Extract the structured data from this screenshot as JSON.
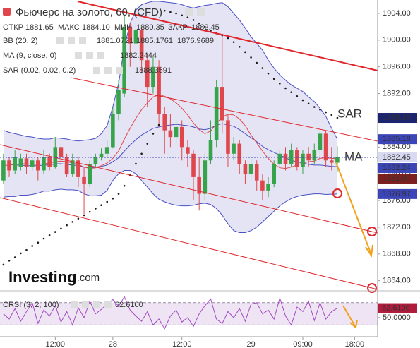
{
  "chart_data": [
    {
      "type": "candlestick",
      "title": "Фьючерс на золото, 60, (CFD)",
      "ohlc_legend": [
        {
          "name": "ОТКР",
          "value": 1881.65
        },
        {
          "name": "МАКС",
          "value": {
            "value": 1884.1,
            "label": "1884.10"
          }
        },
        {
          "name": "МИН",
          "value": 1880.35
        },
        {
          "name": "ЗАКР",
          "value": 1882.45
        }
      ],
      "indicators": [
        {
          "name": "BB (20, 2)",
          "values": [
            1881.0721,
            1885.1761,
            1876.9689
          ],
          "colors": [
            "#d32f2f",
            "#2b2fa8",
            "#2b2fa8"
          ]
        },
        {
          "name": "MA (9, close, 0)",
          "values": [
            1882.2444
          ],
          "colors": [
            "#2b2fa8"
          ]
        },
        {
          "name": "SAR (0.02, 0.02, 0.2)",
          "values": [
            1888.3591
          ],
          "colors": [
            "#2b2fa8"
          ]
        }
      ],
      "annotations": [
        "SAR",
        "MA"
      ],
      "watermark": [
        "Investing",
        ".com"
      ],
      "up_color": "#37a34a",
      "down_color": "#e0474c",
      "open": [
        1879,
        1882,
        1880.5,
        1881,
        1882.3,
        1881,
        1882,
        1880.5,
        1882.5,
        1881,
        1884,
        1882.5,
        1880,
        1882,
        1879.5,
        1878.5,
        1881.5,
        1882.5,
        1883,
        1884,
        1889,
        1892,
        1902,
        1899.5,
        1901.5,
        1897,
        1893,
        1896,
        1889,
        1886.5,
        1885.5,
        1887,
        1884,
        1883,
        1879.5,
        1877,
        1882,
        1885,
        1893,
        1888,
        1883,
        1884.5,
        1881.5,
        1880,
        1881.5,
        1879,
        1877.5,
        1878.5,
        1881.5,
        1883,
        1881.5,
        1883.5,
        1881,
        1883,
        1882,
        1883.5,
        1886,
        1882,
        1881.65
      ],
      "high": [
        1883,
        1882.5,
        1883.5,
        1883,
        1883,
        1882.5,
        1882.5,
        1883.5,
        1883,
        1885.5,
        1884.5,
        1883,
        1883,
        1882.5,
        1881,
        1882,
        1883,
        1883.8,
        1885,
        1890,
        1894,
        1903.8,
        1902.5,
        1902.5,
        1902,
        1898,
        1897.5,
        1897,
        1890,
        1889,
        1888,
        1888,
        1885,
        1883.5,
        1882.5,
        1883,
        1888,
        1894,
        1901,
        1889,
        1885.5,
        1885,
        1882,
        1882.5,
        1882,
        1880,
        1879.5,
        1882,
        1883.5,
        1884,
        1884.5,
        1884,
        1883.5,
        1884,
        1884.5,
        1886.5,
        1886.5,
        1884,
        1884.1
      ],
      "low": [
        1878.5,
        1879.5,
        1880,
        1880.5,
        1880,
        1880.5,
        1879,
        1880,
        1880.5,
        1880.8,
        1881,
        1879.5,
        1879.5,
        1878,
        1874,
        1878,
        1881,
        1882,
        1882.5,
        1883.8,
        1888,
        1891.5,
        1896,
        1898.5,
        1895,
        1890,
        1892,
        1887,
        1883,
        1884,
        1884.5,
        1882,
        1881,
        1876,
        1874.5,
        1876,
        1881.5,
        1884,
        1886,
        1881,
        1882,
        1880,
        1878.5,
        1879,
        1877.5,
        1876,
        1876.5,
        1878,
        1881,
        1880.5,
        1881,
        1880.5,
        1880,
        1881,
        1881.5,
        1882,
        1881,
        1880.5,
        1880.35
      ],
      "close": [
        1882,
        1880.5,
        1882.5,
        1882.3,
        1881,
        1882,
        1880.5,
        1882.5,
        1881,
        1884,
        1882.5,
        1880,
        1882,
        1879.5,
        1878.5,
        1881.5,
        1882.5,
        1883,
        1884,
        1889,
        1892.5,
        1902,
        1899.5,
        1901.5,
        1897,
        1893,
        1896,
        1889,
        1886.5,
        1885.5,
        1887,
        1884,
        1883,
        1879.5,
        1877,
        1882,
        1885,
        1893,
        1888,
        1883,
        1884.5,
        1881.5,
        1880,
        1881.5,
        1879,
        1877.5,
        1878.5,
        1881.5,
        1883,
        1881.5,
        1883.5,
        1881,
        1883,
        1882,
        1883.5,
        1886,
        1882,
        1881.65,
        1882.45
      ],
      "bb": {
        "color": "#4a4fc4",
        "fill": "#e4e4f4",
        "upper": [
          1886.5,
          1886.2,
          1886,
          1885.8,
          1885.6,
          1885.5,
          1885.3,
          1885.2,
          1885.2,
          1885.4,
          1885.3,
          1885.2,
          1885,
          1884.9,
          1885,
          1885.1,
          1885.3,
          1886,
          1887.2,
          1890,
          1893.5,
          1899,
          1902.5,
          1904.5,
          1905.3,
          1905.6,
          1905.8,
          1905.8,
          1905.7,
          1905.6,
          1905.5,
          1905.3,
          1905,
          1904.8,
          1905,
          1905.2,
          1905.3,
          1905.5,
          1905.6,
          1905,
          1904,
          1903,
          1901.8,
          1900.5,
          1899.5,
          1898.5,
          1897,
          1895.8,
          1894.8,
          1894,
          1893.3,
          1892.8,
          1892.3,
          1891.5,
          1890.8,
          1889.8,
          1888.6,
          1886.8,
          1885.18
        ],
        "middle": [
          1881.5,
          1881.4,
          1881.3,
          1881.3,
          1881.2,
          1881.2,
          1881.2,
          1881.3,
          1881.3,
          1881.5,
          1881.5,
          1881.4,
          1881.3,
          1881.2,
          1881,
          1880.9,
          1881,
          1881.1,
          1881.3,
          1881.8,
          1882.4,
          1883.4,
          1884.3,
          1885.1,
          1885.8,
          1886.3,
          1886.8,
          1887,
          1887.2,
          1887.3,
          1887.4,
          1887.3,
          1887.2,
          1887,
          1886.7,
          1886.6,
          1886.8,
          1887.3,
          1887.5,
          1887.3,
          1887.1,
          1886.6,
          1886,
          1885.4,
          1884.8,
          1884.1,
          1883.6,
          1883.2,
          1882.8,
          1882.4,
          1882,
          1881.8,
          1881.6,
          1881.4,
          1881.3,
          1881.3,
          1881.2,
          1881.1,
          1881.07
        ],
        "lower": [
          1876.5,
          1876.6,
          1876.6,
          1876.8,
          1876.8,
          1876.9,
          1877.1,
          1877.4,
          1877.4,
          1877.6,
          1877.7,
          1877.6,
          1877.6,
          1877.5,
          1877,
          1876.7,
          1876.7,
          1876.8,
          1877.5,
          1879,
          1880,
          1880.5,
          1880.5,
          1880,
          1879,
          1878,
          1877,
          1876.2,
          1875.8,
          1875.5,
          1875.3,
          1875.2,
          1875.2,
          1875.3,
          1875.5,
          1875.6,
          1875.4,
          1874.8,
          1873.8,
          1872.5,
          1871.5,
          1871.2,
          1871.2,
          1871.5,
          1872,
          1872.8,
          1873.6,
          1874.4,
          1875.2,
          1875.8,
          1876.3,
          1876.6,
          1876.8,
          1876.9,
          1877,
          1877,
          1876.9,
          1876.95,
          1876.97
        ]
      },
      "ma": {
        "color": "#e0474c",
        "values": [
          1881.2,
          1881.3,
          1881.4,
          1881.5,
          1881.5,
          1881.4,
          1881.4,
          1881.5,
          1881.6,
          1881.8,
          1881.9,
          1881.8,
          1881.6,
          1881.4,
          1881,
          1880.8,
          1880.9,
          1881.2,
          1881.6,
          1882.3,
          1883.4,
          1885.2,
          1886.8,
          1888.3,
          1889.6,
          1890.6,
          1891.5,
          1891.8,
          1891.6,
          1891.2,
          1890.6,
          1889.8,
          1888.8,
          1887.6,
          1886.6,
          1886,
          1886.4,
          1887.5,
          1888.5,
          1888.9,
          1888.8,
          1888.2,
          1887.2,
          1885.8,
          1884.6,
          1883.4,
          1882.3,
          1881.4,
          1880.9,
          1880.8,
          1881,
          1881.3,
          1881.6,
          1881.8,
          1881.9,
          1882.3,
          1882.4,
          1882.3,
          1882.24
        ]
      },
      "sar": {
        "color": "#1b1b1b",
        "values": [
          1866.4,
          1867,
          1867.5,
          1868.1,
          1868.6,
          1869.2,
          1869.7,
          1870.3,
          1870.8,
          1871.3,
          1871.8,
          1872.3,
          1872.8,
          1873.3,
          1873.8,
          1874.3,
          1874.8,
          1875.3,
          1875.8,
          1876.3,
          1877,
          1878.2,
          1879.8,
          1881.5,
          1883,
          1884.5,
          1886,
          1887.3,
          1904.4,
          1904.2,
          1904,
          1903.7,
          1903.4,
          1903,
          1902.5,
          1902,
          1901.4,
          1901,
          1900.7,
          1900.3,
          1899.7,
          1899,
          1898.2,
          1897.4,
          1896.6,
          1895.8,
          1895,
          1894.2,
          1893.5,
          1892.8,
          1892.2,
          1891.6,
          1891,
          1890.5,
          1890,
          1889.6,
          1889.2,
          1888.8,
          1888.36
        ]
      },
      "price_labels": [
        {
          "value": 1888.36,
          "color": "#1c2470",
          "text_color": "#ffffff"
        },
        {
          "value": 1885.18,
          "color": "#3c45b8",
          "text_color": "#ffffff"
        },
        {
          "value": 1882.45,
          "color": "#d7daf1",
          "text_color": "#1c2470"
        },
        {
          "value": 1882.24,
          "color": "#3c45b8",
          "text_color": "#ffffff"
        },
        {
          "value": 1881.07,
          "color": "#7d1f1f",
          "text_color": "#ffffff"
        },
        {
          "value": 1876.97,
          "color": "#3c45b8",
          "text_color": "#ffffff"
        }
      ],
      "xlim": [
        -0.6,
        65
      ],
      "xticks": [
        {
          "value": 9,
          "label": "12:00"
        },
        {
          "value": 19,
          "label": "28"
        },
        {
          "value": 31,
          "label": "12:00"
        },
        {
          "value": 43,
          "label": "29"
        },
        {
          "value": 52,
          "label": "09:00"
        },
        {
          "value": 61,
          "label": "18:00"
        }
      ],
      "ylim": [
        1862.7,
        1906
      ],
      "yticks": [
        {
          "value": 1864,
          "label": "1864.00"
        },
        {
          "value": 1868,
          "label": "1868.00"
        },
        {
          "value": 1872,
          "label": "1872.00"
        },
        {
          "value": 1876,
          "label": "1876.00"
        },
        {
          "value": 1880,
          "label": "1880.00"
        },
        {
          "value": 1884,
          "label": "1884.00"
        },
        {
          "value": 1888,
          "label": "1888.00"
        },
        {
          "value": 1892,
          "label": "1892.00"
        },
        {
          "value": 1896,
          "label": "1896.00"
        },
        {
          "value": 1900,
          "label": "1900.00"
        },
        {
          "value": 1904,
          "label": "1904.00"
        }
      ]
    },
    {
      "type": "line",
      "title": "CRSI (3, 2, 100)",
      "value": {
        "value": 62.61,
        "label": "62.6100"
      },
      "color": "#a24bc0",
      "value_box_color": "#b11c3c",
      "levels": [
        70,
        40
      ],
      "level_fill": "#eee4f3",
      "xlim": [
        -0.6,
        65
      ],
      "ylim": [
        29,
        84
      ],
      "yticks": [
        {
          "value": 50,
          "label": "50.0000"
        }
      ],
      "values": [
        55,
        48,
        62,
        45,
        58,
        70,
        42,
        60,
        52,
        66,
        44,
        58,
        40,
        63,
        50,
        72,
        55,
        61,
        68,
        74,
        65,
        78,
        60,
        52,
        45,
        58,
        40,
        48,
        35,
        52,
        60,
        44,
        50,
        38,
        55,
        66,
        75,
        48,
        42,
        58,
        50,
        62,
        45,
        68,
        70,
        55,
        60,
        48,
        76,
        52,
        40,
        64,
        58,
        72,
        46,
        70,
        48,
        58,
        62.61
      ]
    }
  ]
}
